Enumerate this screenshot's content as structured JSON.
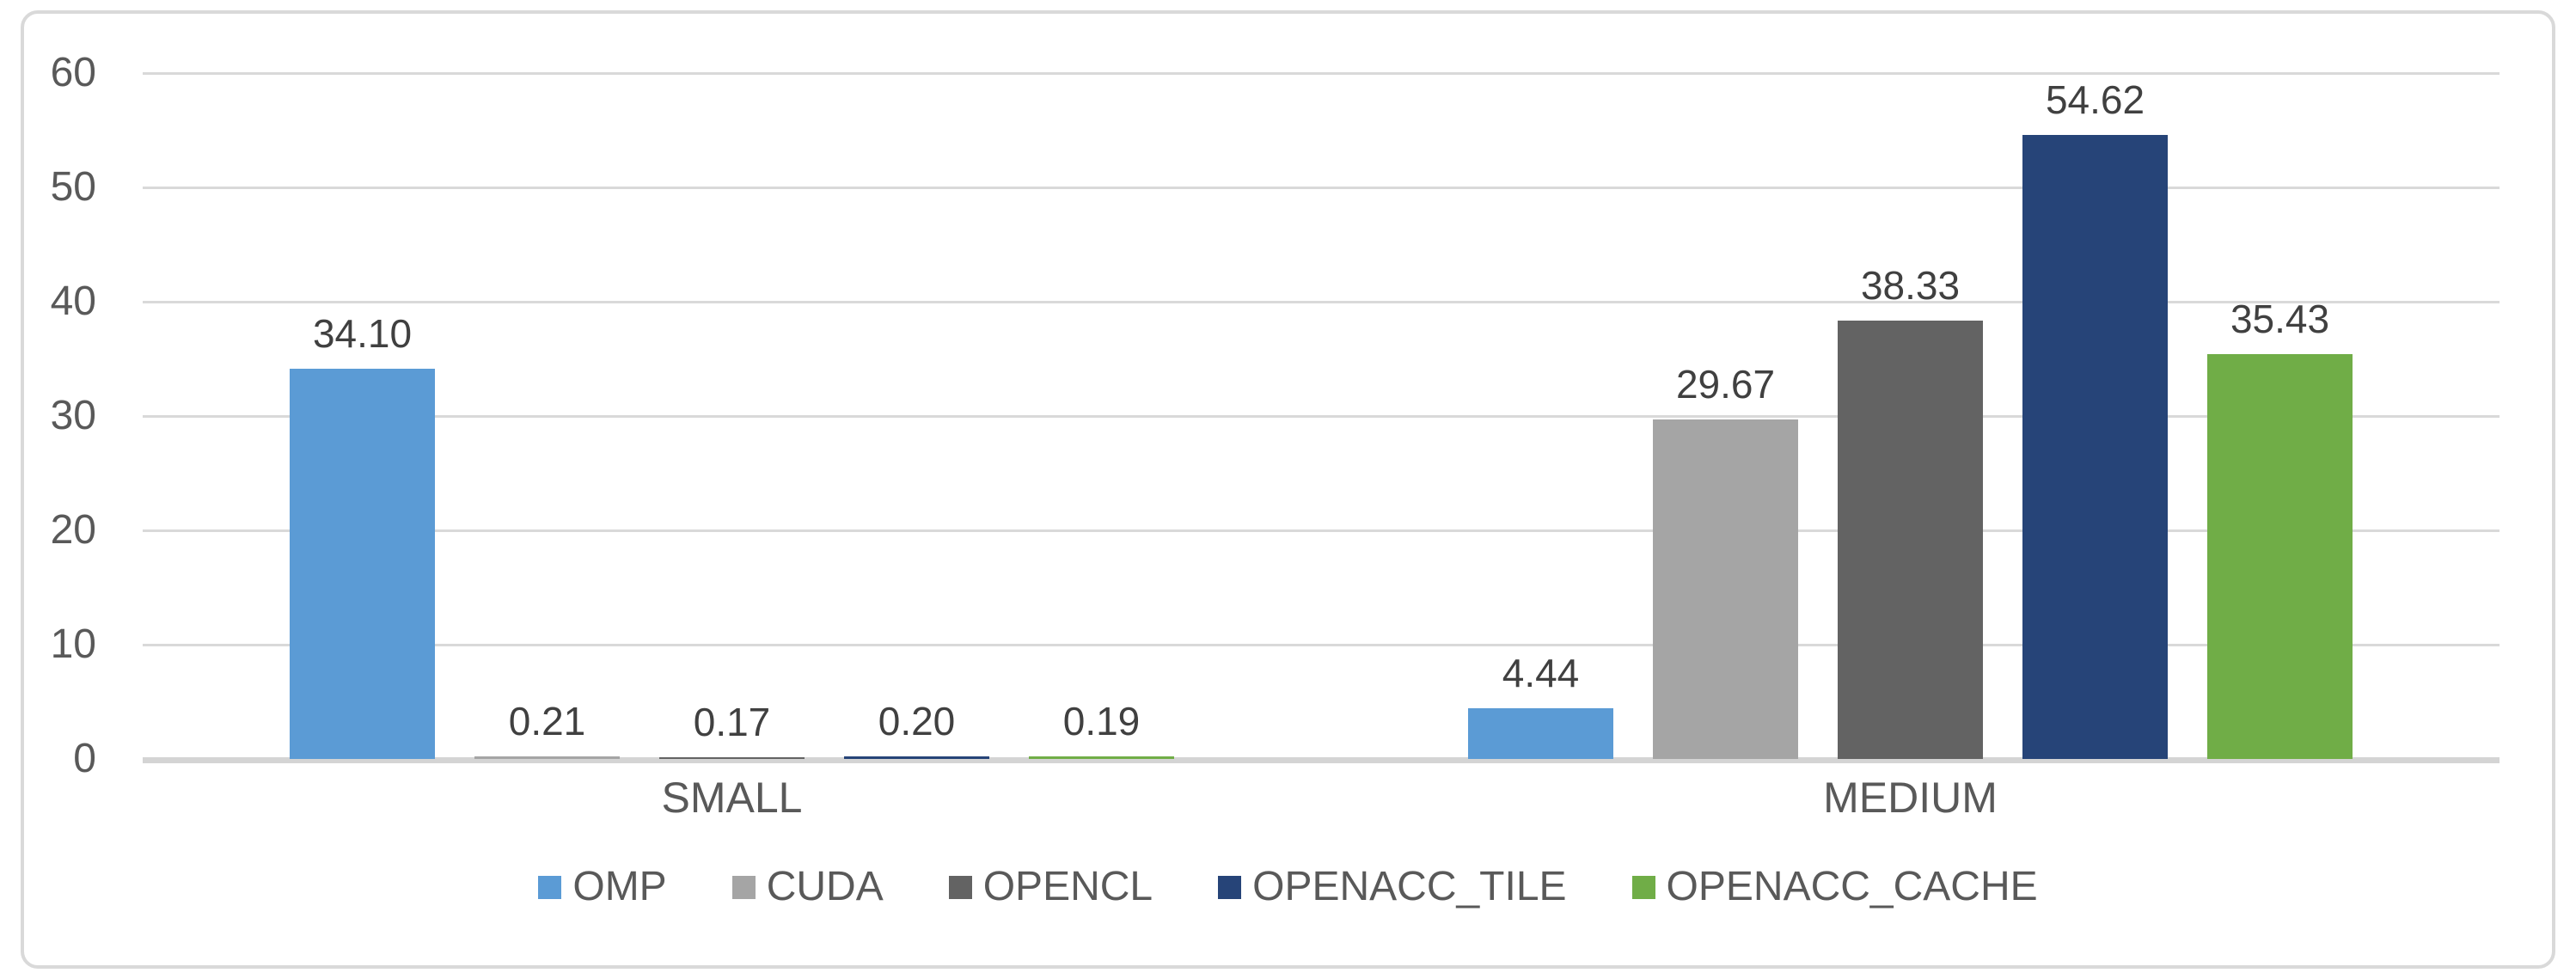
{
  "chart_data": {
    "type": "bar",
    "categories": [
      "SMALL",
      "MEDIUM"
    ],
    "series": [
      {
        "name": "OMP",
        "color": "#5B9BD5",
        "values": [
          34.1,
          4.44
        ]
      },
      {
        "name": "CUDA",
        "color": "#A5A5A5",
        "values": [
          0.21,
          29.67
        ]
      },
      {
        "name": "OPENCL",
        "color": "#636363",
        "values": [
          0.17,
          38.33
        ]
      },
      {
        "name": "OPENACC_TILE",
        "color": "#264478",
        "values": [
          0.2,
          54.62
        ]
      },
      {
        "name": "OPENACC_CACHE",
        "color": "#70AD47",
        "values": [
          0.19,
          35.43
        ]
      }
    ],
    "data_labels": [
      [
        "34.10",
        "0.21",
        "0.17",
        "0.20",
        "0.19"
      ],
      [
        "4.44",
        "29.67",
        "38.33",
        "54.62",
        "35.43"
      ]
    ],
    "title": "",
    "xlabel": "",
    "ylabel": "",
    "ylim": [
      0,
      60
    ],
    "yticks": [
      0,
      10,
      20,
      30,
      40,
      50,
      60
    ],
    "ytick_labels": [
      "0",
      "10",
      "20",
      "30",
      "40",
      "50",
      "60"
    ],
    "grid": true,
    "legend_position": "bottom",
    "colors": {
      "gridline": "#D9D9D9",
      "baseline": "#D4D4D4",
      "frame_border": "#D9D9D9",
      "tick_text": "#595959",
      "data_label_text": "#404040",
      "background": "#FFFFFF"
    }
  }
}
